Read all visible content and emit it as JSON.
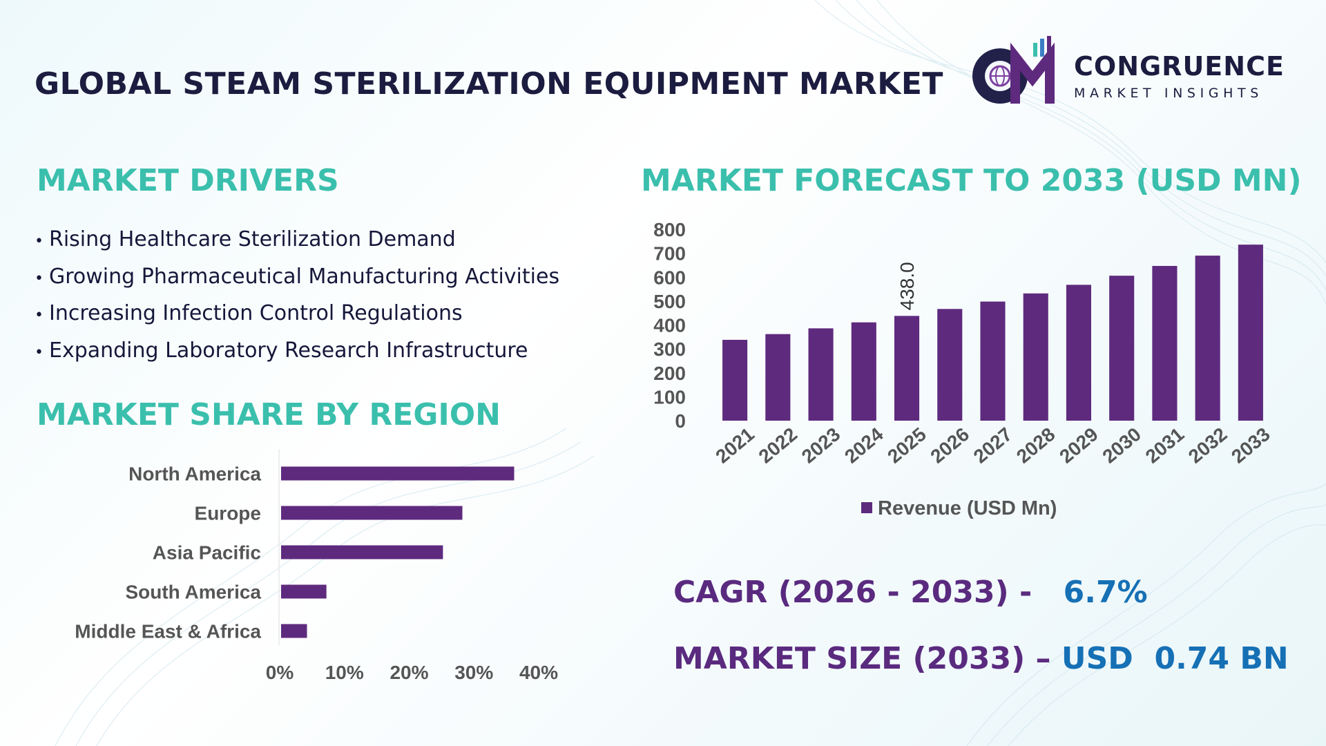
{
  "header": {
    "title": "GLOBAL STEAM STERILIZATION EQUIPMENT MARKET",
    "logo_main": "CONGRUENCE",
    "logo_sub": "MARKET INSIGHTS",
    "logo_initials": "CM"
  },
  "drivers": {
    "heading": "MARKET DRIVERS",
    "items": [
      "Rising Healthcare Sterilization Demand",
      "Growing Pharmaceutical Manufacturing Activities",
      "Increasing Infection Control Regulations",
      "Expanding Laboratory Research Infrastructure"
    ]
  },
  "region": {
    "heading": "MARKET SHARE BY REGION"
  },
  "forecast": {
    "heading": "MARKET FORECAST TO 2033 (USD MN)"
  },
  "kpis": {
    "cagr_label": "CAGR (2026 - 2033) -",
    "cagr_value": "6.7%",
    "size_label": "MARKET SIZE (2033) –",
    "size_value": "USD  0.74 BN"
  },
  "colors": {
    "bar": "#5e2a7e",
    "heading": "#3bbfad",
    "kpi_label": "#5a2a7f",
    "kpi_value": "#1670b5",
    "title": "#1b1c3f"
  },
  "chart_data": [
    {
      "type": "bar",
      "orientation": "vertical",
      "categories": [
        "2021",
        "2022",
        "2023",
        "2024",
        "2025",
        "2026",
        "2027",
        "2028",
        "2029",
        "2030",
        "2031",
        "2032",
        "2033"
      ],
      "series": [
        {
          "name": "Revenue (USD Mn)",
          "values": [
            338,
            362,
            386,
            411,
            438,
            467,
            498,
            532,
            568,
            606,
            647,
            690,
            736
          ]
        }
      ],
      "data_labels": {
        "2025": "438.0"
      },
      "yticks": [
        "0",
        "100",
        "200",
        "300",
        "400",
        "500",
        "600",
        "700",
        "800"
      ],
      "ylim": [
        0,
        800
      ],
      "grid": false,
      "legend": "bottom",
      "bar_color": "#5e2a7e"
    },
    {
      "type": "bar",
      "orientation": "horizontal",
      "categories": [
        "North America",
        "Europe",
        "Asia Pacific",
        "South America",
        "Middle East & Africa"
      ],
      "values": [
        36,
        28,
        25,
        7,
        4
      ],
      "xticks": [
        "0%",
        "10%",
        "20%",
        "30%",
        "40%"
      ],
      "xlim": [
        0,
        40
      ],
      "grid": false,
      "bar_color": "#5e2a7e"
    }
  ]
}
